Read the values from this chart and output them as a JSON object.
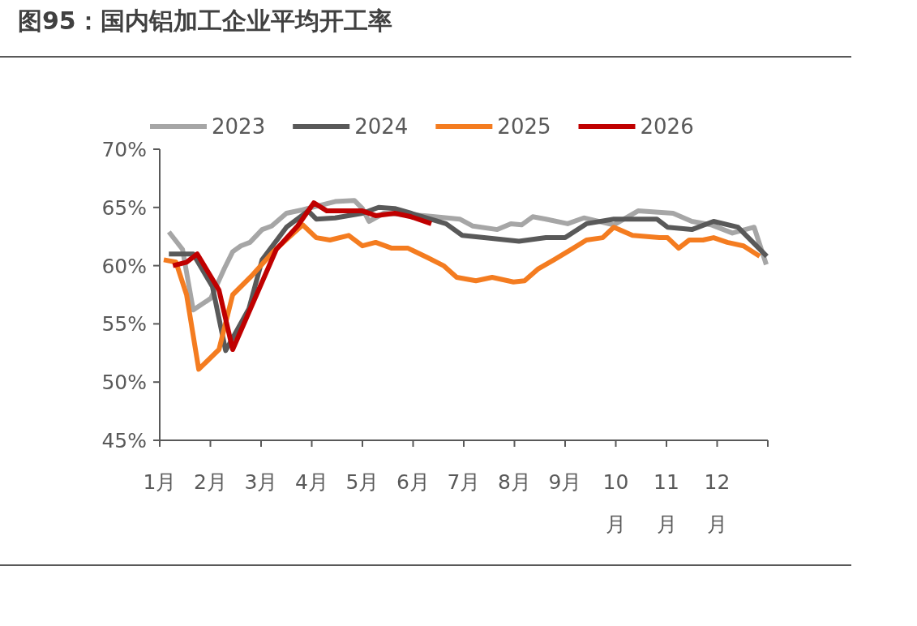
{
  "chart_data": {
    "type": "line",
    "title": "图95：国内铝加工企业平均开工率",
    "xlim": [
      1,
      13
    ],
    "xticks": [
      {
        "value": 1,
        "label": "1月"
      },
      {
        "value": 2,
        "label": "2月"
      },
      {
        "value": 3,
        "label": "3月"
      },
      {
        "value": 4,
        "label": "4月"
      },
      {
        "value": 5,
        "label": "5月"
      },
      {
        "value": 6,
        "label": "6月"
      },
      {
        "value": 7,
        "label": "7月"
      },
      {
        "value": 8,
        "label": "8月"
      },
      {
        "value": 9,
        "label": "9月"
      },
      {
        "value": 10,
        "label": "10月"
      },
      {
        "value": 11,
        "label": "11月"
      },
      {
        "value": 12,
        "label": "12月"
      },
      {
        "value": 13,
        "label": null
      }
    ],
    "ylim": [
      45,
      70
    ],
    "yticks": [
      {
        "value": 45,
        "label": "45%"
      },
      {
        "value": 50,
        "label": "50%"
      },
      {
        "value": 55,
        "label": "55%"
      },
      {
        "value": 60,
        "label": "60%"
      },
      {
        "value": 65,
        "label": "65%"
      },
      {
        "value": 70,
        "label": "70%"
      }
    ],
    "legend": "top",
    "grid": false,
    "marker": "none",
    "line_style": "solid",
    "series": [
      {
        "name": "2023",
        "color": "#a6a6a6",
        "x": [
          1.18,
          1.45,
          1.66,
          2.01,
          2.28,
          2.44,
          2.6,
          2.78,
          3.02,
          3.21,
          3.5,
          3.82,
          4.46,
          4.84,
          5.0,
          5.13,
          5.42,
          6.22,
          6.92,
          7.18,
          7.66,
          7.93,
          8.14,
          8.36,
          8.62,
          9.05,
          9.37,
          9.96,
          10.44,
          11.13,
          11.5,
          11.88,
          12.3,
          12.73,
          12.97
        ],
        "values": [
          62.9,
          61.4,
          56.2,
          57.2,
          59.8,
          61.2,
          61.7,
          62.0,
          63.1,
          63.4,
          64.5,
          64.8,
          65.5,
          65.6,
          64.9,
          63.8,
          64.5,
          64.3,
          64.0,
          63.4,
          63.1,
          63.6,
          63.5,
          64.2,
          64.0,
          63.6,
          64.1,
          63.5,
          64.7,
          64.5,
          63.8,
          63.5,
          62.8,
          63.3,
          60.1
        ]
      },
      {
        "name": "2024",
        "color": "#595959",
        "x": [
          1.18,
          1.66,
          2.04,
          2.3,
          2.76,
          3.02,
          3.5,
          3.93,
          4.09,
          4.46,
          5.0,
          5.32,
          5.64,
          5.96,
          6.65,
          6.97,
          7.4,
          8.09,
          8.62,
          9.0,
          9.42,
          9.96,
          10.81,
          11.02,
          11.5,
          11.93,
          12.41,
          12.89,
          12.98
        ],
        "values": [
          61.0,
          61.0,
          58.2,
          52.7,
          56.3,
          60.5,
          63.3,
          64.7,
          64.0,
          64.1,
          64.5,
          65.0,
          64.9,
          64.5,
          63.6,
          62.6,
          62.4,
          62.1,
          62.4,
          62.4,
          63.6,
          64.0,
          64.0,
          63.3,
          63.1,
          63.8,
          63.3,
          61.2,
          60.8
        ]
      },
      {
        "name": "2025",
        "color": "#f47c20",
        "x": [
          1.08,
          1.32,
          1.53,
          1.77,
          2.17,
          2.44,
          2.81,
          3.24,
          3.82,
          4.09,
          4.36,
          4.73,
          5.0,
          5.26,
          5.58,
          5.9,
          6.28,
          6.6,
          6.86,
          7.24,
          7.56,
          7.98,
          8.2,
          8.46,
          8.78,
          9.16,
          9.42,
          9.74,
          9.96,
          10.33,
          10.86,
          11.02,
          11.24,
          11.45,
          11.72,
          11.93,
          12.2,
          12.52,
          12.84
        ],
        "values": [
          60.5,
          60.3,
          57.5,
          51.1,
          52.8,
          57.5,
          59.1,
          61.2,
          63.5,
          62.4,
          62.2,
          62.6,
          61.7,
          62.0,
          61.5,
          61.5,
          60.7,
          60.0,
          59.0,
          58.7,
          59.0,
          58.6,
          58.7,
          59.7,
          60.5,
          61.5,
          62.2,
          62.4,
          63.3,
          62.6,
          62.4,
          62.4,
          61.5,
          62.2,
          62.2,
          62.4,
          62.0,
          61.7,
          60.8
        ]
      },
      {
        "name": "2026",
        "color": "#c00000",
        "x": [
          1.26,
          1.53,
          1.74,
          2.17,
          2.44,
          3.3,
          3.72,
          4.04,
          4.3,
          5.0,
          5.26,
          5.64,
          5.96,
          6.36
        ],
        "values": [
          60.0,
          60.3,
          61.0,
          57.9,
          52.8,
          61.4,
          63.4,
          65.4,
          64.7,
          64.7,
          64.3,
          64.5,
          64.2,
          63.6
        ]
      }
    ]
  }
}
